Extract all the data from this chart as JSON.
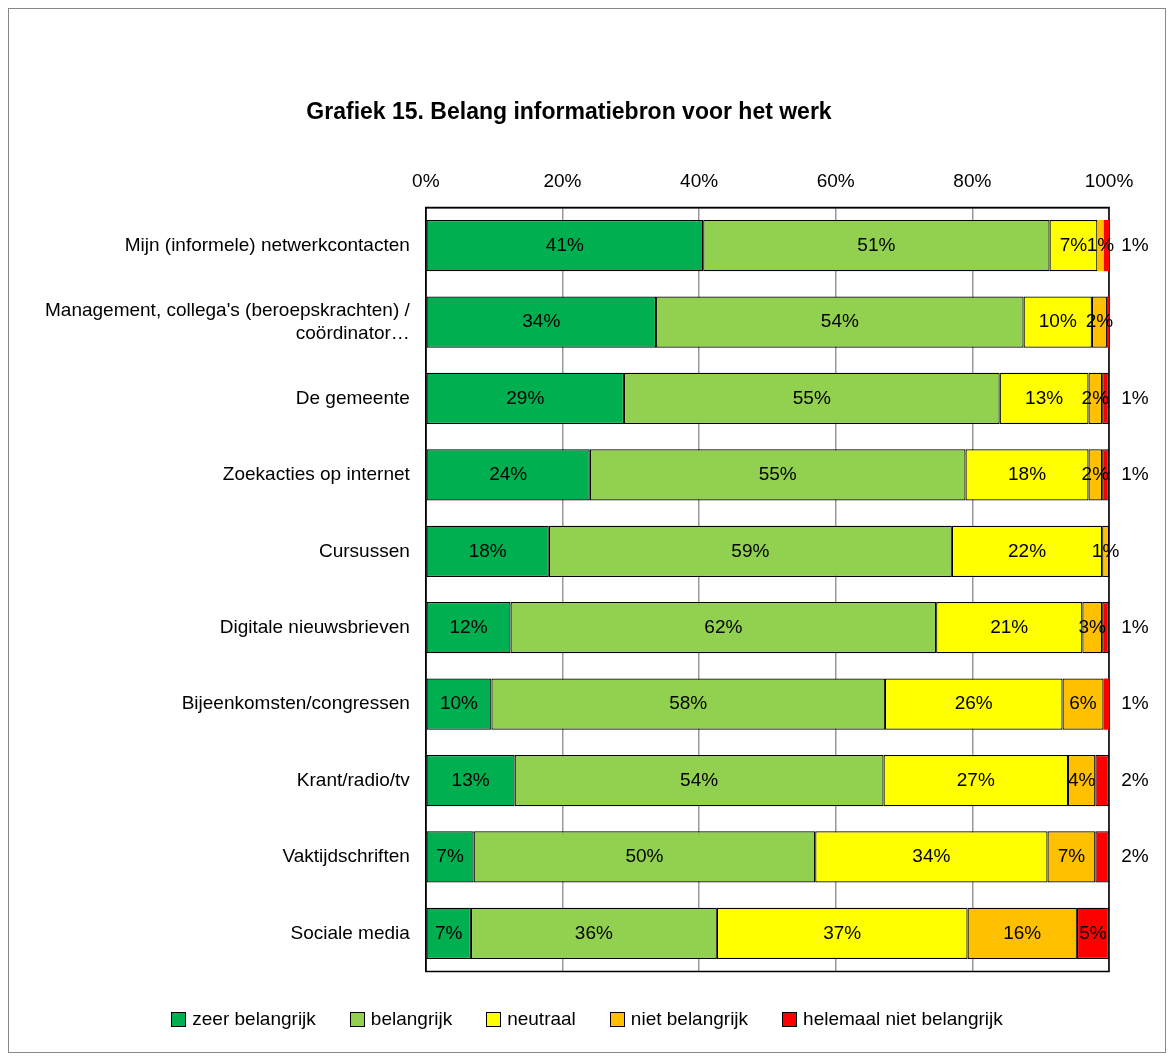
{
  "chart_data": {
    "type": "bar",
    "orientation": "horizontal",
    "stacked": true,
    "title": "Grafiek 15. Belang informatiebron voor het werk",
    "categories": [
      "Mijn (informele) netwerkcontacten",
      "Management, collega's (beroepskrachten) / coördinator…",
      "De gemeente",
      "Zoekacties op internet",
      "Cursussen",
      "Digitale nieuwsbrieven",
      "Bijeenkomsten/congressen",
      "Krant/radio/tv",
      "Vaktijdschriften",
      "Sociale media"
    ],
    "series": [
      {
        "name": "zeer belangrijk",
        "color": "#00b050",
        "values": [
          40.6,
          33.7,
          29,
          24,
          18,
          12.4,
          9.6,
          13,
          7,
          6.6
        ],
        "value_labels": [
          "41%",
          "34%",
          "29%",
          "24%",
          "18%",
          "12%",
          "10%",
          "13%",
          "7%",
          "7%"
        ]
      },
      {
        "name": "belangrijk",
        "color": "#92d050",
        "values": [
          50.7,
          53.8,
          55,
          55,
          59,
          62.3,
          57.6,
          54,
          50,
          36
        ],
        "value_labels": [
          "51%",
          "54%",
          "55%",
          "55%",
          "59%",
          "62%",
          "58%",
          "54%",
          "50%",
          "36%"
        ]
      },
      {
        "name": "neutraal",
        "color": "#ffff00",
        "values": [
          7,
          10,
          13,
          18,
          22,
          21.4,
          26,
          27,
          34,
          36.7
        ],
        "value_labels": [
          "7%",
          "10%",
          "13%",
          "18%",
          "22%",
          "21%",
          "26%",
          "27%",
          "34%",
          "37%"
        ]
      },
      {
        "name": "niet belangrijk",
        "color": "#ffc000",
        "values": [
          0.9,
          2.2,
          2,
          2,
          1,
          2.9,
          6,
          4,
          7,
          16
        ],
        "value_labels": [
          "1%",
          "2%",
          "2%",
          "2%",
          "1%",
          "3%",
          "6%",
          "4%",
          "7%",
          "16%"
        ]
      },
      {
        "name": "helemaal niet belangrijk",
        "color": "#ff0000",
        "values": [
          0.8,
          0.3,
          1,
          1,
          null,
          1,
          0.8,
          2,
          2,
          4.7
        ],
        "value_labels": [
          "1%",
          null,
          "1%",
          "1%",
          null,
          "1%",
          "1%",
          "2%",
          "2%",
          "5%"
        ]
      }
    ],
    "xlim": [
      0,
      100
    ],
    "xticks": [
      {
        "value": 0,
        "label": "0%"
      },
      {
        "value": 20,
        "label": "20%"
      },
      {
        "value": 40,
        "label": "40%"
      },
      {
        "value": 60,
        "label": "60%"
      },
      {
        "value": 80,
        "label": "80%"
      },
      {
        "value": 100,
        "label": "100%"
      }
    ],
    "grid": "x",
    "legend": "bottom"
  }
}
